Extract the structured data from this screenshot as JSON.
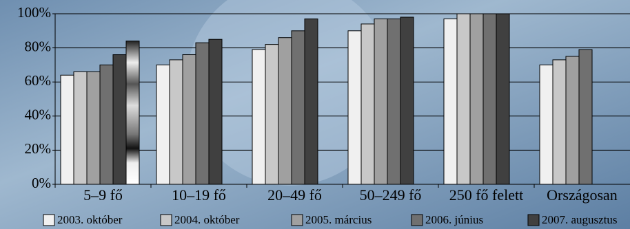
{
  "chart_data": {
    "type": "bar",
    "categories": [
      "5–9 fő",
      "10–19 fő",
      "20–49 fő",
      "50–249 fő",
      "250 fő felett",
      "Országosan"
    ],
    "series": [
      {
        "name": "2003. október",
        "color": "#f0f0f0",
        "values": [
          64,
          70,
          79,
          90,
          97,
          70
        ]
      },
      {
        "name": "2004. október",
        "color": "#c8c8c8",
        "values": [
          66,
          73,
          82,
          94,
          100,
          73
        ]
      },
      {
        "name": "2005. március",
        "color": "#a0a0a0",
        "values": [
          66,
          76,
          86,
          97,
          100,
          75
        ]
      },
      {
        "name": "2006. június",
        "color": "#707070",
        "values": [
          70,
          83,
          90,
          97,
          100,
          79
        ]
      },
      {
        "name": "2007. augusztus",
        "color": "#404040",
        "values": [
          76,
          85,
          97,
          98,
          100,
          null
        ]
      },
      {
        "color": "metal",
        "values": [
          84,
          null,
          null,
          null,
          null,
          null
        ]
      }
    ],
    "ylim": [
      0,
      100
    ],
    "yticks": [
      {
        "value": 0,
        "label": "0%"
      },
      {
        "value": 20,
        "label": "20%"
      },
      {
        "value": 40,
        "label": "40%"
      },
      {
        "value": 60,
        "label": "60%"
      },
      {
        "value": 80,
        "label": "80%"
      },
      {
        "value": 100,
        "label": "100%"
      }
    ],
    "grid": true
  }
}
